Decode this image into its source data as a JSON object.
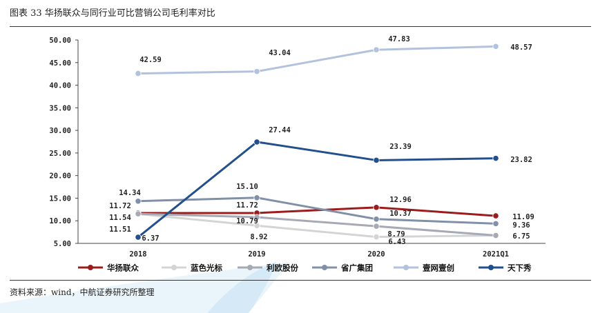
{
  "figure": {
    "title": "图表 33 华扬联众与同行业可比营销公司毛利率对比",
    "source": "资料来源：wind，中航证券研究所整理"
  },
  "colors": {
    "华扬联众": "#9b1c1c",
    "蓝色光标": "#d4d4d4",
    "利欧股份": "#a7a9b4",
    "省广集团": "#8090a8",
    "壹网壹创": "#b2c2dc",
    "天下秀": "#234f8c"
  },
  "chart_data": {
    "type": "line",
    "categories": [
      "2018",
      "2019",
      "2020",
      "2021Q1"
    ],
    "ylim": [
      5,
      50
    ],
    "yticks": [
      "5.00",
      "10.00",
      "15.00",
      "20.00",
      "25.00",
      "30.00",
      "35.00",
      "40.00",
      "45.00",
      "50.00"
    ],
    "grid": false,
    "legend_position": "bottom",
    "series": [
      {
        "name": "华扬联众",
        "values": [
          11.72,
          11.72,
          12.96,
          11.09
        ]
      },
      {
        "name": "蓝色光标",
        "values": [
          11.51,
          8.92,
          6.43,
          6.75
        ]
      },
      {
        "name": "利欧股份",
        "values": [
          11.54,
          10.79,
          8.79,
          6.75
        ]
      },
      {
        "name": "省广集团",
        "values": [
          14.34,
          15.1,
          10.37,
          9.36
        ]
      },
      {
        "name": "壹网壹创",
        "values": [
          42.59,
          43.04,
          47.83,
          48.57
        ]
      },
      {
        "name": "天下秀",
        "values": [
          6.37,
          27.44,
          23.39,
          23.82
        ]
      }
    ],
    "data_labels": [
      {
        "text": "42.59"
      },
      {
        "text": "43.04"
      },
      {
        "text": "47.83"
      },
      {
        "text": "48.57"
      },
      {
        "text": "27.44"
      },
      {
        "text": "23.39"
      },
      {
        "text": "23.82"
      },
      {
        "text": "14.34"
      },
      {
        "text": "15.10"
      },
      {
        "text": "12.96"
      },
      {
        "text": "11.72"
      },
      {
        "text": "11.72"
      },
      {
        "text": "11.09"
      },
      {
        "text": "11.54"
      },
      {
        "text": "10.79"
      },
      {
        "text": "10.37"
      },
      {
        "text": "9.36"
      },
      {
        "text": "11.51"
      },
      {
        "text": "8.79"
      },
      {
        "text": "6.37"
      },
      {
        "text": "8.92"
      },
      {
        "text": "6.43"
      },
      {
        "text": "6.75"
      }
    ]
  }
}
